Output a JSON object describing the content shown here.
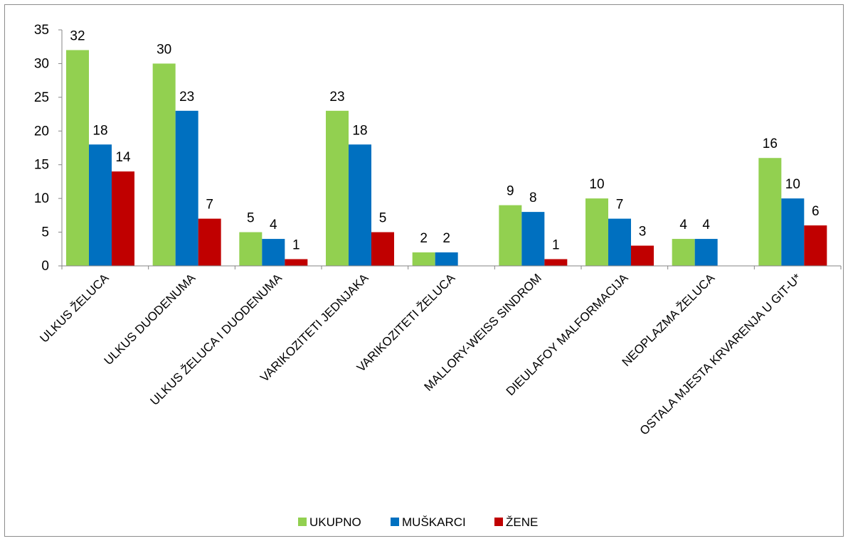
{
  "chart_data": {
    "type": "bar",
    "categories": [
      "ULKUS ŽELUCA",
      "ULKUS DUODENUMA",
      "ULKUS ŽELUCA I DUODENUMA",
      "VARIKOZITETI JEDNJAKA",
      "VARIKOZITETI ŽELUCA",
      "MALLORY-WEISS SINDROM",
      "DIEULAFOY MALFORMACIJA",
      "NEOPLAZMA ŽELUCA",
      "OSTALA MJESTA KRVARENJA U GIT-U*"
    ],
    "series": [
      {
        "name": "UKUPNO",
        "color": "#92d050",
        "values": [
          32,
          30,
          5,
          23,
          2,
          9,
          10,
          4,
          16
        ]
      },
      {
        "name": "MUŠKARCI",
        "color": "#0070c0",
        "values": [
          18,
          23,
          4,
          18,
          2,
          8,
          7,
          4,
          10
        ]
      },
      {
        "name": "ŽENE",
        "color": "#c00000",
        "values": [
          14,
          7,
          1,
          5,
          0,
          1,
          3,
          0,
          6
        ]
      }
    ],
    "ylim": [
      0,
      35
    ],
    "yticks": [
      0,
      5,
      10,
      15,
      20,
      25,
      30,
      35
    ],
    "grid": false,
    "legend_position": "bottom",
    "title": "",
    "xlabel": "",
    "ylabel": ""
  }
}
